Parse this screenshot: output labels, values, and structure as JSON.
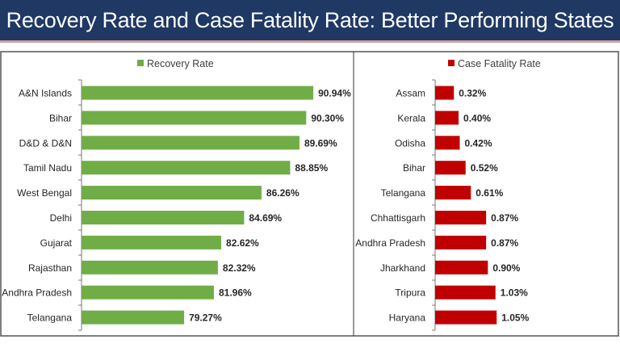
{
  "title": "Recovery Rate and Case Fatality Rate: Better Performing States",
  "chart_data": [
    {
      "type": "bar",
      "orientation": "horizontal",
      "series": [
        {
          "name": "Recovery Rate",
          "color": "#70ad47",
          "values": [
            90.94,
            90.3,
            89.69,
            88.85,
            86.26,
            84.69,
            82.62,
            82.32,
            81.96,
            79.27
          ]
        }
      ],
      "categories": [
        "A&N Islands",
        "Bihar",
        "D&D & D&N",
        "Tamil Nadu",
        "West Bengal",
        "Delhi",
        "Gujarat",
        "Rajasthan",
        "Andhra Pradesh",
        "Telangana"
      ],
      "labels": [
        "90.94%",
        "90.30%",
        "89.69%",
        "88.85%",
        "86.26%",
        "84.69%",
        "82.62%",
        "82.32%",
        "81.96%",
        "79.27%"
      ],
      "xlim": [
        70,
        92
      ],
      "legend": "top",
      "grid": false
    },
    {
      "type": "bar",
      "orientation": "horizontal",
      "series": [
        {
          "name": "Case Fatality Rate",
          "color": "#c00000",
          "values": [
            0.32,
            0.4,
            0.42,
            0.52,
            0.61,
            0.87,
            0.87,
            0.9,
            1.03,
            1.05
          ]
        }
      ],
      "categories": [
        "Assam",
        "Kerala",
        "Odisha",
        "Bihar",
        "Telangana",
        "Chhattisgarh",
        "Andhra Pradesh",
        "Jharkhand",
        "Tripura",
        "Haryana"
      ],
      "labels": [
        "0.32%",
        "0.40%",
        "0.42%",
        "0.52%",
        "0.61%",
        "0.87%",
        "0.87%",
        "0.90%",
        "1.03%",
        "1.05%"
      ],
      "xlim": [
        0,
        1.2
      ],
      "legend": "top",
      "grid": false
    }
  ]
}
